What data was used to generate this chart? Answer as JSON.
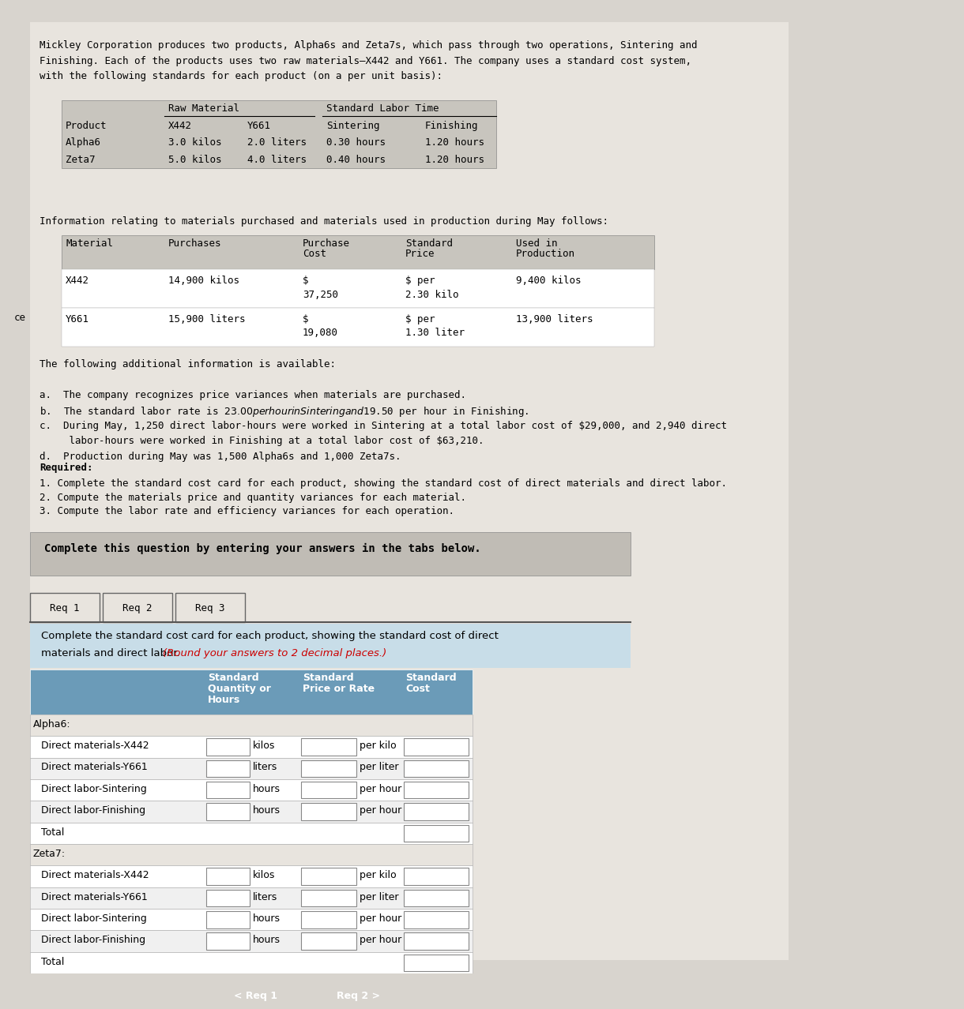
{
  "bg_color": "#d8d4ce",
  "content_bg": "#e8e4de",
  "intro_text_lines": [
    "Mickley Corporation produces two products, Alpha6s and Zeta7s, which pass through two operations, Sintering and",
    "Finishing. Each of the products uses two raw materials—X442 and Y661. The company uses a standard cost system,",
    "with the following standards for each product (on a per unit basis):"
  ],
  "table1_header1_cols": [
    "Raw Material",
    "Standard Labor Time"
  ],
  "table1_subheader": [
    "Product",
    "X442",
    "Y661",
    "Sintering",
    "Finishing"
  ],
  "table1_rows": [
    [
      "Alpha6",
      "3.0 kilos",
      "2.0 liters",
      "0.30 hours",
      "1.20 hours"
    ],
    [
      "Zeta7",
      "5.0 kilos",
      "4.0 liters",
      "0.40 hours",
      "1.20 hours"
    ]
  ],
  "info_text": "Information relating to materials purchased and materials used in production during May follows:",
  "table2_col_headers": [
    "Material",
    "Purchases",
    "Purchase\nCost",
    "Standard\nPrice",
    "Used in\nProduction"
  ],
  "table2_rows_line1": [
    "X442",
    "14,900 kilos",
    "$",
    "$ per",
    "9,400 kilos"
  ],
  "table2_rows_line2": [
    "",
    "",
    "37,250",
    "2.30 kilo",
    ""
  ],
  "table2_rows2_line1": [
    "Y661",
    "15,900 liters",
    "$",
    "$ per",
    "13,900 liters"
  ],
  "table2_rows2_line2": [
    "",
    "",
    "19,080",
    "1.30 liter",
    ""
  ],
  "add_header": "The following additional information is available:",
  "add_a": "a.  The company recognizes price variances when materials are purchased.",
  "add_b": "b.  The standard labor rate is $23.00 per hour in Sintering and $19.50 per hour in Finishing.",
  "add_c1": "c.  During May, 1,250 direct labor-hours were worked in Sintering at a total labor cost of $29,000, and 2,940 direct",
  "add_c2": "     labor-hours were worked in Finishing at a total labor cost of $63,210.",
  "add_d": "d.  Production during May was 1,500 Alpha6s and 1,000 Zeta7s.",
  "req_header": "Required:",
  "req_1": "1. Complete the standard cost card for each product, showing the standard cost of direct materials and direct labor.",
  "req_2": "2. Compute the materials price and quantity variances for each material.",
  "req_3": "3. Compute the labor rate and efficiency variances for each operation.",
  "complete_box_text": "Complete this question by entering your answers in the tabs below.",
  "tabs": [
    "Req 1",
    "Req 2",
    "Req 3"
  ],
  "tab_instr_1": "Complete the standard cost card for each product, showing the standard cost of direct",
  "tab_instr_2a": "materials and direct labor. ",
  "tab_instr_2b": "(Round your answers to 2 decimal places.)",
  "cc_header": [
    "",
    "Standard\nQuantity or\nHours",
    "Standard\nPrice or Rate",
    "Standard\nCost"
  ],
  "alpha6_rows": [
    [
      "Alpha6:",
      "",
      "",
      ""
    ],
    [
      "Direct materials-X442",
      "kilos",
      "per kilo",
      ""
    ],
    [
      "Direct materials-Y661",
      "liters",
      "per liter",
      ""
    ],
    [
      "Direct labor-Sintering",
      "hours",
      "per hour",
      ""
    ],
    [
      "Direct labor-Finishing",
      "hours",
      "per hour",
      ""
    ],
    [
      "Total",
      "",
      "",
      ""
    ]
  ],
  "zeta7_rows": [
    [
      "Zeta7:",
      "",
      "",
      ""
    ],
    [
      "Direct materials-X442",
      "kilos",
      "per kilo",
      ""
    ],
    [
      "Direct materials-Y661",
      "liters",
      "per liter",
      ""
    ],
    [
      "Direct labor-Sintering",
      "hours",
      "per hour",
      ""
    ],
    [
      "Direct labor-Finishing",
      "hours",
      "per hour",
      ""
    ],
    [
      "Total",
      "",
      "",
      ""
    ]
  ],
  "nav_left_text": "< Req 1",
  "nav_left_color": "#555555",
  "nav_right_text": "Req 2 >",
  "nav_right_color": "#1a4f7a",
  "ce_text": "ce",
  "table1_bg": "#c8c5be",
  "table2_bg": "#c8c5be",
  "cc_header_bg": "#6b9bb8",
  "cc_row_light": "#f0f0f0",
  "cc_row_white": "#ffffff",
  "complete_box_bg": "#c0bcb5",
  "tab_content_bg": "#c8dde8",
  "font_mono": "monospace"
}
